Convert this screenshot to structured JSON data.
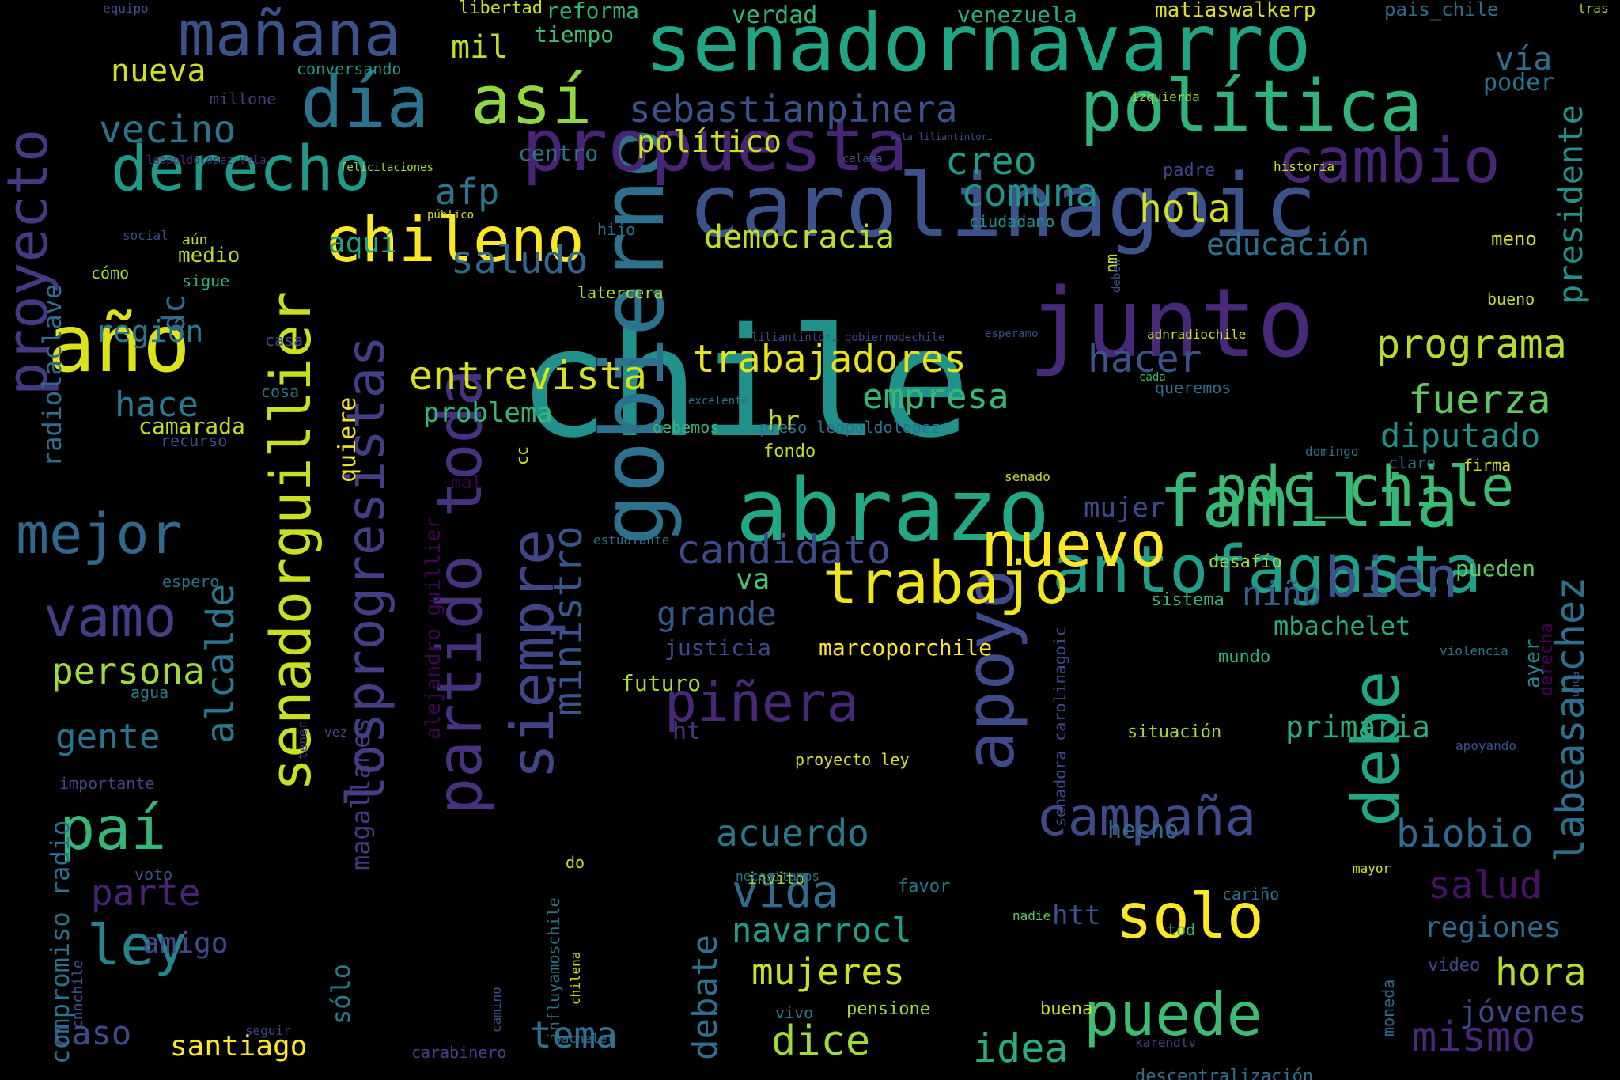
{
  "words": [
    {
      "text": "chile",
      "color": "#21918c"
    },
    {
      "text": "carolinagoic",
      "color": "#3b528b"
    },
    {
      "text": "senadornavarro",
      "color": "#21a685"
    },
    {
      "text": "junto",
      "color": "#482878"
    },
    {
      "text": "abrazo",
      "color": "#22a884"
    },
    {
      "text": "gobierno",
      "color": "#2c718e"
    },
    {
      "text": "senadorguillier",
      "color": "#c8e020"
    },
    {
      "text": "política",
      "color": "#2fb47c"
    },
    {
      "text": "propuesta",
      "color": "#482475"
    },
    {
      "text": "apoyo",
      "color": "#3e4a89"
    },
    {
      "text": "losprogresistas",
      "color": "#433e85"
    },
    {
      "text": "familia",
      "color": "#35b779"
    },
    {
      "text": "antofagasta",
      "color": "#1f9e89"
    },
    {
      "text": "partido toda",
      "color": "#46327e"
    },
    {
      "text": "año",
      "color": "#dde318"
    },
    {
      "text": "día",
      "color": "#2c728e"
    },
    {
      "text": "así",
      "color": "#90d743"
    },
    {
      "text": "derecho",
      "color": "#1f9a8a"
    },
    {
      "text": "cambio",
      "color": "#482576"
    },
    {
      "text": "chileno",
      "color": "#fde725"
    },
    {
      "text": "trabajo",
      "color": "#f1e51d"
    },
    {
      "text": "nuevo",
      "color": "#fde725"
    },
    {
      "text": "pdc_chile",
      "color": "#3fbc73"
    },
    {
      "text": "mañana",
      "color": "#3b528b"
    },
    {
      "text": "proyecto",
      "color": "#443a83"
    },
    {
      "text": "debe",
      "color": "#22a785"
    },
    {
      "text": "siempre",
      "color": "#414487"
    },
    {
      "text": "solo",
      "color": "#fde725"
    },
    {
      "text": "puede",
      "color": "#3fbc73"
    },
    {
      "text": "piñera",
      "color": "#482878"
    },
    {
      "text": "campaña",
      "color": "#3e4a89"
    },
    {
      "text": "bien",
      "color": "#3b528b"
    },
    {
      "text": "paí",
      "color": "#35b779"
    },
    {
      "text": "ley",
      "color": "#25848e"
    },
    {
      "text": "mejor",
      "color": "#31688e"
    },
    {
      "text": "vamo",
      "color": "#433e85"
    },
    {
      "text": "ministro",
      "color": "#39568c"
    },
    {
      "text": "presidente",
      "color": "#20928c"
    },
    {
      "text": "trabajadores",
      "color": "#e5e419"
    },
    {
      "text": "entrevista",
      "color": "#d8e219"
    },
    {
      "text": "programa",
      "color": "#b5de2b"
    },
    {
      "text": "sebastianpinera",
      "color": "#3b528b"
    },
    {
      "text": "alcalde",
      "color": "#2a788e"
    },
    {
      "text": "candidato",
      "color": "#3e4a89"
    },
    {
      "text": "labeasanchez",
      "color": "#2d708e"
    },
    {
      "text": "vecino",
      "color": "#2c738e"
    },
    {
      "text": "acuerdo",
      "color": "#2a788e"
    },
    {
      "text": "vida",
      "color": "#2f6c8e"
    },
    {
      "text": "comuna",
      "color": "#21918c"
    },
    {
      "text": "empresa",
      "color": "#35b779"
    },
    {
      "text": "fuerza",
      "color": "#5ec962"
    },
    {
      "text": "creo",
      "color": "#1f9e89"
    },
    {
      "text": "hola",
      "color": "#d2e21b"
    },
    {
      "text": "afp",
      "color": "#2c738e"
    },
    {
      "text": "saludo",
      "color": "#31688e"
    },
    {
      "text": "hacer",
      "color": "#3b528b"
    },
    {
      "text": "diputado",
      "color": "#21918c"
    },
    {
      "text": "dice",
      "color": "#a0da39"
    },
    {
      "text": "idea",
      "color": "#27ad81"
    },
    {
      "text": "mismo",
      "color": "#482878"
    },
    {
      "text": "salud",
      "color": "#471164"
    },
    {
      "text": "biobio",
      "color": "#2f6b8e"
    },
    {
      "text": "hora",
      "color": "#b5de2b"
    },
    {
      "text": "mujeres",
      "color": "#cae11f"
    },
    {
      "text": "navarrocl",
      "color": "#1f9e89"
    },
    {
      "text": "debate",
      "color": "#2c728e"
    },
    {
      "text": "tema",
      "color": "#2c718e"
    },
    {
      "text": "caso",
      "color": "#3e4a89"
    },
    {
      "text": "gente",
      "color": "#2c718e"
    },
    {
      "text": "parte",
      "color": "#482475"
    },
    {
      "text": "persona",
      "color": "#a0da39"
    },
    {
      "text": "hace",
      "color": "#2a788e"
    },
    {
      "text": "región",
      "color": "#2a788e"
    },
    {
      "text": "nueva",
      "color": "#d0e11c"
    },
    {
      "text": "mil",
      "color": "#bddf26"
    },
    {
      "text": "grande",
      "color": "#39568c"
    },
    {
      "text": "democracia",
      "color": "#bddf26"
    },
    {
      "text": "educación",
      "color": "#2c718e"
    },
    {
      "text": "mbachelet",
      "color": "#26ad81"
    },
    {
      "text": "niño",
      "color": "#355f8d"
    },
    {
      "text": "regiones",
      "color": "#2f6b8e"
    },
    {
      "text": "jóvenes",
      "color": "#3e4a89"
    },
    {
      "text": "santiago",
      "color": "#fde725"
    },
    {
      "text": "compromiso radio",
      "color": "#2c728e"
    },
    {
      "text": "radiolaclave",
      "color": "#2f6c8e"
    },
    {
      "text": "dc",
      "color": "#31688e"
    },
    {
      "text": "mujer",
      "color": "#3e4a89"
    },
    {
      "text": "problema",
      "color": "#35b779"
    },
    {
      "text": "hr",
      "color": "#bddf26"
    },
    {
      "text": "va",
      "color": "#4ac16d"
    },
    {
      "text": "primaria",
      "color": "#28ae80"
    },
    {
      "text": "htt",
      "color": "#3b528b"
    },
    {
      "text": "amigo",
      "color": "#3e4a89"
    },
    {
      "text": "quiere",
      "color": "#f1e51d"
    },
    {
      "text": "alejandro guillier",
      "color": "#440154"
    },
    {
      "text": "magallanes",
      "color": "#443b84"
    },
    {
      "text": "sólo",
      "color": "#2a788e"
    },
    {
      "text": "justicia",
      "color": "#3e4a89"
    },
    {
      "text": "futuro",
      "color": "#a8db34"
    },
    {
      "text": "marcoporchile",
      "color": "#fde725"
    },
    {
      "text": "ht",
      "color": "#443a83"
    },
    {
      "text": "hecho",
      "color": "#2e6e8e"
    },
    {
      "text": "camarada",
      "color": "#c0df25"
    },
    {
      "text": "aquí",
      "color": "#1fa188"
    },
    {
      "text": "político",
      "color": "#d0e11c"
    },
    {
      "text": "centro",
      "color": "#2c738e"
    },
    {
      "text": "medio",
      "color": "#b5de2b"
    },
    {
      "text": "vía",
      "color": "#2f6c8e"
    },
    {
      "text": "poder",
      "color": "#2c738e"
    },
    {
      "text": "verdad",
      "color": "#2fb47c"
    },
    {
      "text": "venezuela",
      "color": "#27ad81"
    },
    {
      "text": "matiaswalkerp",
      "color": "#d8e219"
    },
    {
      "text": "pais_chile",
      "color": "#2f6b8e"
    },
    {
      "text": "reforma",
      "color": "#2fb47c"
    },
    {
      "text": "tiempo",
      "color": "#3fbc73"
    },
    {
      "text": "libertad",
      "color": "#d0e11c"
    },
    {
      "text": "equipo",
      "color": "#3b528b"
    },
    {
      "text": "tras",
      "color": "#9fda3a"
    },
    {
      "text": "conversando",
      "color": "#1f9a8a"
    },
    {
      "text": "millone",
      "color": "#433e85"
    },
    {
      "text": "izquierda",
      "color": "#a0da39"
    },
    {
      "text": "favor",
      "color": "#2a788e"
    },
    {
      "text": "pensione",
      "color": "#a0da39"
    },
    {
      "text": "vivo",
      "color": "#2a788e"
    },
    {
      "text": "carabinero",
      "color": "#414487"
    },
    {
      "text": "voto",
      "color": "#3b528b"
    },
    {
      "text": "agua",
      "color": "#2a788e"
    },
    {
      "text": "espero",
      "color": "#2c718e"
    },
    {
      "text": "importante",
      "color": "#414487"
    },
    {
      "text": "cómo",
      "color": "#9fda3a"
    },
    {
      "text": "sigue",
      "color": "#2fb47c"
    },
    {
      "text": "aún",
      "color": "#b5de2b"
    },
    {
      "text": "social",
      "color": "#3e4a89"
    },
    {
      "text": "leopoldolopez vzla",
      "color": "#482878"
    },
    {
      "text": "felicitaciones",
      "color": "#9fda3a"
    },
    {
      "text": "público",
      "color": "#d8e219"
    },
    {
      "text": "hijo",
      "color": "#2c738e"
    },
    {
      "text": "latercera",
      "color": "#b5de2b"
    },
    {
      "text": "ciudadano",
      "color": "#21918c"
    },
    {
      "text": "padre",
      "color": "#414487"
    },
    {
      "text": "historia",
      "color": "#d8e219"
    },
    {
      "text": "meno",
      "color": "#d8e219"
    },
    {
      "text": "bueno",
      "color": "#bddf26"
    },
    {
      "text": "nm",
      "color": "#c0df25"
    },
    {
      "text": "cada",
      "color": "#3fbc73"
    },
    {
      "text": "queremos",
      "color": "#2f6c8e"
    },
    {
      "text": "adnradiochile",
      "color": "#d0e11c"
    },
    {
      "text": "esperamo",
      "color": "#3b528b"
    },
    {
      "text": "liliantintori gobiernodechile",
      "color": "#414487"
    },
    {
      "text": "excelente",
      "color": "#2c718e"
    },
    {
      "text": "casa",
      "color": "#3e4a89"
    },
    {
      "text": "cosa",
      "color": "#2c718e"
    },
    {
      "text": "recurso",
      "color": "#3b528b"
    },
    {
      "text": "debemos",
      "color": "#35b779"
    },
    {
      "text": "fondo",
      "color": "#bddf26"
    },
    {
      "text": "preso leopoldolopez",
      "color": "#2c718e"
    },
    {
      "text": "senado",
      "color": "#c0df25"
    },
    {
      "text": "claro",
      "color": "#2c738e"
    },
    {
      "text": "firma",
      "color": "#d8e219"
    },
    {
      "text": "domingo",
      "color": "#2c718e"
    },
    {
      "text": "mal",
      "color": "#440154"
    },
    {
      "text": "cc",
      "color": "#c0df25"
    },
    {
      "text": "estudiante",
      "color": "#2c718e"
    },
    {
      "text": "desafío",
      "color": "#a8db34"
    },
    {
      "text": "pueden",
      "color": "#5ec962"
    },
    {
      "text": "sistema",
      "color": "#35b779"
    },
    {
      "text": "mundo",
      "color": "#2fb47c"
    },
    {
      "text": "violencia",
      "color": "#2c718e"
    },
    {
      "text": "derecha",
      "color": "#440154"
    },
    {
      "text": "ayer",
      "color": "#25848e"
    },
    {
      "text": "nunca",
      "color": "#3e4a89"
    },
    {
      "text": "apoyando",
      "color": "#3b528b"
    },
    {
      "text": "situación",
      "color": "#a0da39"
    },
    {
      "text": "proyecto ley",
      "color": "#d8e219"
    },
    {
      "text": "senadora carolinagoic",
      "color": "#3e4a89"
    },
    {
      "text": "invito",
      "color": "#a0da39"
    },
    {
      "text": "necesitamos",
      "color": "#2a788e"
    },
    {
      "text": "do",
      "color": "#c0df25"
    },
    {
      "text": "chilena",
      "color": "#d8e219"
    },
    {
      "text": "influyamoschile",
      "color": "#2c718e"
    },
    {
      "text": "camino",
      "color": "#3b528b"
    },
    {
      "text": "bachelet",
      "color": "#2c718e"
    },
    {
      "text": "seguir",
      "color": "#3e4a89"
    },
    {
      "text": "nadie",
      "color": "#5ec962"
    },
    {
      "text": "buena",
      "color": "#c8e020"
    },
    {
      "text": "karendtv",
      "color": "#414487"
    },
    {
      "text": "tod",
      "color": "#2fb47c"
    },
    {
      "text": "cariño",
      "color": "#2c718e"
    },
    {
      "text": "mayor",
      "color": "#d8e219"
    },
    {
      "text": "video",
      "color": "#3e4a89"
    },
    {
      "text": "moneda",
      "color": "#31688e"
    },
    {
      "text": "descentralización",
      "color": "#2c718e"
    },
    {
      "text": "cnnchile",
      "color": "#3b528b"
    },
    {
      "text": "tener",
      "color": "#443a83"
    },
    {
      "text": "vez",
      "color": "#3e4a89"
    },
    {
      "text": "deben",
      "color": "#3b528b"
    },
    {
      "text": "vzla liliantintori",
      "color": "#3b528b"
    },
    {
      "text": "calama",
      "color": "#3b528b"
    }
  ]
}
